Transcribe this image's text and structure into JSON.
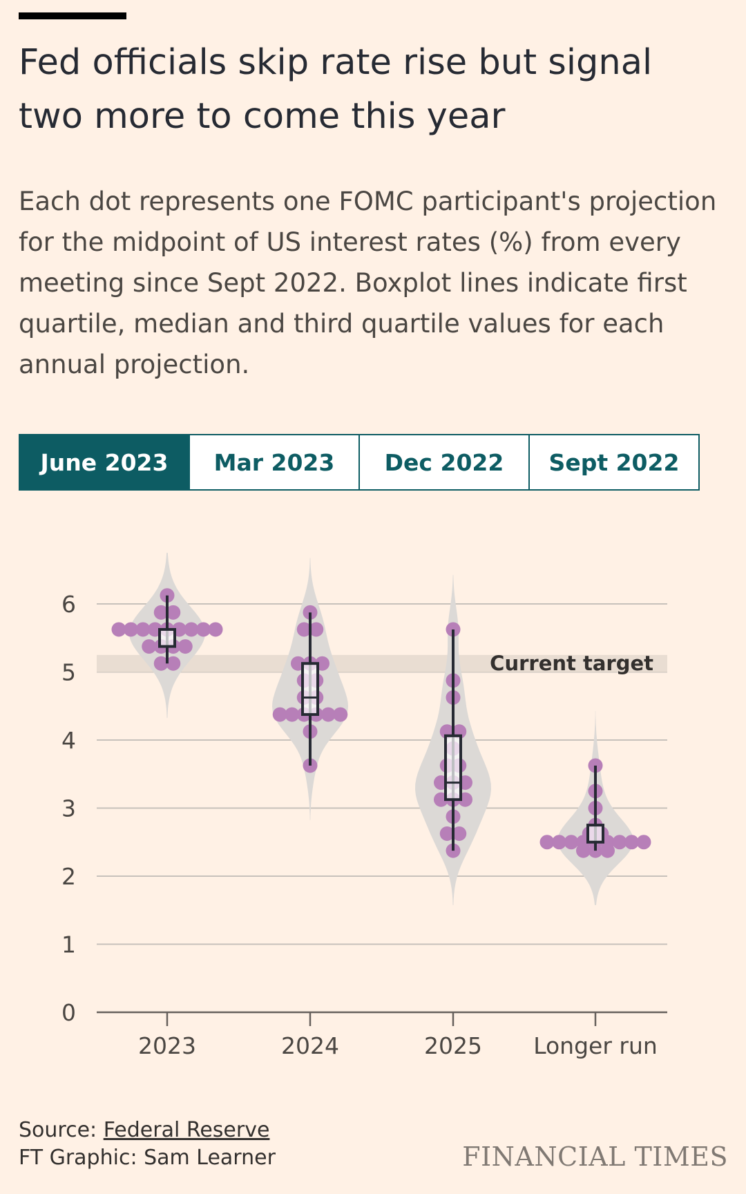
{
  "header": {
    "title": "Fed officials skip rate rise but signal two more to come this year",
    "subtitle": "Each dot represents one FOMC participant's projection for the midpoint of US interest rates (%) from every meeting since Sept 2022. Boxplot lines indicate first quartile, median and third quartile values for each annual projection."
  },
  "tabs": [
    {
      "label": "June 2023",
      "active": true
    },
    {
      "label": "Mar 2023",
      "active": false
    },
    {
      "label": "Dec 2022",
      "active": false
    },
    {
      "label": "Sept 2022",
      "active": false
    }
  ],
  "footer": {
    "source_prefix": "Source: ",
    "source_link": "Federal Reserve",
    "credit": "FT Graphic: Sam Learner",
    "logo": "FINANCIAL TIMES"
  },
  "colors": {
    "background": "#fff1e5",
    "dot": "#b77fb8",
    "violin": "#dcd9d6",
    "target_band": "#e9ddd2",
    "tab_active": "#0d5c63",
    "gridline": "#c7c1bb",
    "axis": "#66605c"
  },
  "chart_data": {
    "type": "scatter",
    "categories": [
      "2023",
      "2024",
      "2025",
      "Longer run"
    ],
    "ylim": [
      0,
      6
    ],
    "yticks": [
      0,
      1,
      2,
      3,
      4,
      5,
      6
    ],
    "band": {
      "label": "Current target",
      "from": 5.0,
      "to": 5.25
    },
    "series": [
      {
        "category": "2023",
        "points": [
          5.625,
          5.625,
          5.625,
          5.625,
          5.625,
          5.625,
          5.625,
          5.625,
          5.625,
          5.875,
          5.875,
          5.375,
          5.375,
          5.375,
          5.375,
          5.125,
          5.125,
          6.125
        ],
        "q1": 5.375,
        "median": 5.625,
        "q3": 5.625,
        "min": 5.125,
        "max": 6.125
      },
      {
        "category": "2024",
        "points": [
          4.375,
          4.375,
          4.375,
          4.375,
          4.375,
          4.375,
          5.125,
          5.125,
          5.125,
          4.875,
          4.875,
          4.625,
          4.625,
          5.625,
          5.625,
          5.875,
          4.125,
          3.625
        ],
        "q1": 4.375,
        "median": 4.625,
        "q3": 5.125,
        "min": 3.625,
        "max": 5.875
      },
      {
        "category": "2025",
        "points": [
          3.375,
          3.375,
          3.375,
          3.125,
          3.125,
          3.125,
          3.625,
          3.625,
          4.125,
          4.125,
          3.875,
          2.875,
          2.625,
          2.625,
          2.375,
          4.625,
          4.875,
          5.625
        ],
        "q1": 3.125,
        "median": 3.375,
        "q3": 4.0625,
        "min": 2.375,
        "max": 5.625
      },
      {
        "category": "Longer run",
        "points": [
          2.5,
          2.5,
          2.5,
          2.5,
          2.5,
          2.5,
          2.5,
          2.5,
          2.5,
          2.625,
          2.625,
          2.375,
          2.375,
          2.375,
          2.75,
          3.0,
          3.25,
          3.625
        ],
        "q1": 2.5,
        "median": 2.5,
        "q3": 2.75,
        "min": 2.375,
        "max": 3.625
      }
    ]
  }
}
